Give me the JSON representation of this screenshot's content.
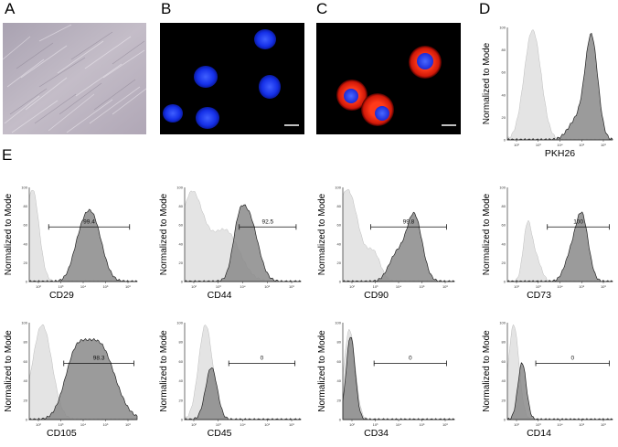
{
  "panel_labels": {
    "A": "A",
    "B": "B",
    "C": "C",
    "D": "D",
    "E": "E"
  },
  "y_axis_label": "Normalized to Mode",
  "y_ticks": [
    "100",
    "80",
    "60",
    "40",
    "20",
    "0"
  ],
  "x_ticks": [
    "10²",
    "10³",
    "10⁴",
    "10⁵",
    "10⁶"
  ],
  "colors": {
    "control": "#e4e4e4",
    "sample": "#8a8a8a",
    "background": "#000000",
    "nucleus": "#1a3dff",
    "membrane": "#ff2a14",
    "phase_contrast": "#bdb6c3"
  },
  "micrographs": {
    "A": {
      "type": "phase-contrast"
    },
    "B": {
      "type": "fluorescence",
      "stain": "nucleus"
    },
    "C": {
      "type": "fluorescence",
      "stain": "nucleus+membrane"
    }
  },
  "chart_data": [
    {
      "id": "D",
      "type": "area",
      "marker": "PKH26",
      "xlabel": "PKH26",
      "ylabel": "Normalized to Mode",
      "ylim": [
        0,
        100
      ],
      "marker_value": "",
      "gate": null
    },
    {
      "id": "CD29",
      "type": "area",
      "marker": "CD29",
      "xlabel": "CD29",
      "ylabel": "Normalized to Mode",
      "ylim": [
        0,
        100
      ],
      "marker_value": "99.4",
      "gate": [
        0.18,
        0.93
      ]
    },
    {
      "id": "CD44",
      "type": "area",
      "marker": "CD44",
      "xlabel": "CD44",
      "ylabel": "Normalized to Mode",
      "ylim": [
        0,
        100
      ],
      "marker_value": "92.5",
      "gate": [
        0.47,
        0.96
      ]
    },
    {
      "id": "CD90",
      "type": "area",
      "marker": "CD90",
      "xlabel": "CD90",
      "ylabel": "Normalized to Mode",
      "ylim": [
        0,
        100
      ],
      "marker_value": "99.8",
      "gate": [
        0.25,
        0.93
      ]
    },
    {
      "id": "CD73",
      "type": "area",
      "marker": "CD73",
      "xlabel": "CD73",
      "ylabel": "Normalized to Mode",
      "ylim": [
        0,
        100
      ],
      "marker_value": "100",
      "gate": [
        0.38,
        0.97
      ]
    },
    {
      "id": "CD105",
      "type": "area",
      "marker": "CD105",
      "xlabel": "CD105",
      "ylabel": "Normalized to Mode",
      "ylim": [
        0,
        100
      ],
      "marker_value": "98.3",
      "gate": [
        0.32,
        0.97
      ]
    },
    {
      "id": "CD45",
      "type": "area",
      "marker": "CD45",
      "xlabel": "CD45",
      "ylabel": "Normalized to Mode",
      "ylim": [
        0,
        100
      ],
      "marker_value": "0",
      "gate": [
        0.38,
        0.95
      ]
    },
    {
      "id": "CD34",
      "type": "area",
      "marker": "CD34",
      "xlabel": "CD34",
      "ylabel": "Normalized to Mode",
      "ylim": [
        0,
        100
      ],
      "marker_value": "0",
      "gate": [
        0.28,
        0.93
      ]
    },
    {
      "id": "CD14",
      "type": "area",
      "marker": "CD14",
      "xlabel": "CD14",
      "ylabel": "Normalized to Mode",
      "ylim": [
        0,
        100
      ],
      "marker_value": "0",
      "gate": [
        0.27,
        0.97
      ]
    }
  ]
}
